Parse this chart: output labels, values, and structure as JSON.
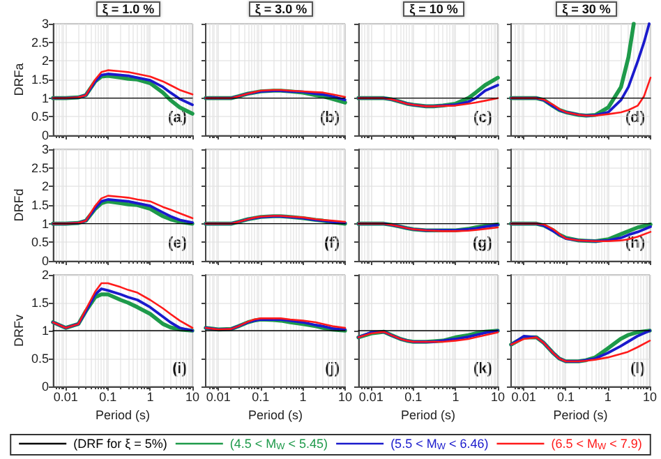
{
  "chart_data": [
    {
      "type": "line",
      "title": "ξ = 1.0 %",
      "ylabel": "DRFa",
      "annotations": [
        "(a)"
      ],
      "log": "x",
      "grid": true,
      "marker": "none",
      "line_style": "solid",
      "tick_labels": "y",
      "legend": "bottom",
      "xlim": [
        0.005,
        10
      ],
      "xticks": [
        0.01,
        0.1,
        1,
        10
      ],
      "ylim": [
        0,
        3
      ],
      "yticks": [
        0,
        0.5,
        1,
        1.5,
        2,
        2.5,
        3
      ],
      "x": [
        0.005,
        0.01,
        0.02,
        0.03,
        0.05,
        0.07,
        0.1,
        0.2,
        0.3,
        0.5,
        1,
        2,
        3,
        5,
        10
      ],
      "series": [
        {
          "name": "(DRF for ξ = 5%)",
          "color": "#000000",
          "x": [
            0.005,
            10
          ],
          "values": [
            1,
            1
          ]
        },
        {
          "name": "(4.5 < M$_{W}$ < 5.45)",
          "color": "#1e9a4a",
          "values": [
            1,
            1,
            1.02,
            1.08,
            1.45,
            1.58,
            1.6,
            1.55,
            1.52,
            1.5,
            1.4,
            1.15,
            0.95,
            0.75,
            0.58
          ]
        },
        {
          "name": "(5.5 < M$_{W}$ < 6.46)",
          "color": "#1a1acc",
          "values": [
            1,
            1,
            1.02,
            1.08,
            1.45,
            1.62,
            1.65,
            1.62,
            1.6,
            1.55,
            1.48,
            1.3,
            1.15,
            0.98,
            0.82
          ]
        },
        {
          "name": "(6.5 < M$_{W}$ < 7.9)",
          "color": "#ff1a1a",
          "values": [
            1,
            1,
            1.02,
            1.08,
            1.5,
            1.7,
            1.75,
            1.72,
            1.7,
            1.65,
            1.58,
            1.45,
            1.35,
            1.22,
            1.1
          ]
        }
      ]
    },
    {
      "type": "line",
      "title": "ξ = 3.0 %",
      "annotations": [
        "(b)"
      ],
      "log": "x",
      "grid": true,
      "marker": "none",
      "line_style": "solid",
      "tick_labels": false,
      "xlim": [
        0.005,
        10
      ],
      "xticks": [
        0.01,
        0.1,
        1,
        10
      ],
      "ylim": [
        0,
        3
      ],
      "yticks": [
        0,
        0.5,
        1,
        1.5,
        2,
        2.5,
        3
      ],
      "x": [
        0.005,
        0.01,
        0.02,
        0.03,
        0.05,
        0.07,
        0.1,
        0.2,
        0.3,
        0.5,
        1,
        2,
        3,
        5,
        10
      ],
      "series": [
        {
          "color": "#000000",
          "x": [
            0.005,
            10
          ],
          "values": [
            1,
            1
          ]
        },
        {
          "color": "#1e9a4a",
          "values": [
            1,
            1,
            1,
            1.05,
            1.12,
            1.15,
            1.18,
            1.2,
            1.2,
            1.18,
            1.15,
            1.08,
            1.05,
            0.98,
            0.88
          ]
        },
        {
          "color": "#1a1acc",
          "values": [
            1,
            1,
            1,
            1.05,
            1.12,
            1.15,
            1.18,
            1.2,
            1.2,
            1.18,
            1.17,
            1.12,
            1.1,
            1.05,
            0.95
          ]
        },
        {
          "color": "#ff1a1a",
          "values": [
            1,
            1,
            1,
            1.05,
            1.12,
            1.16,
            1.2,
            1.22,
            1.22,
            1.2,
            1.18,
            1.16,
            1.15,
            1.1,
            1.03
          ]
        }
      ]
    },
    {
      "type": "line",
      "title": "ξ = 10 %",
      "annotations": [
        "(c)"
      ],
      "log": "x",
      "grid": true,
      "marker": "none",
      "line_style": "solid",
      "tick_labels": false,
      "xlim": [
        0.005,
        10
      ],
      "xticks": [
        0.01,
        0.1,
        1,
        10
      ],
      "ylim": [
        0,
        3
      ],
      "yticks": [
        0,
        0.5,
        1,
        1.5,
        2,
        2.5,
        3
      ],
      "x": [
        0.005,
        0.01,
        0.02,
        0.03,
        0.05,
        0.07,
        0.1,
        0.2,
        0.3,
        0.5,
        1,
        2,
        3,
        5,
        10
      ],
      "series": [
        {
          "color": "#000000",
          "x": [
            0.005,
            10
          ],
          "values": [
            1,
            1
          ]
        },
        {
          "color": "#1e9a4a",
          "values": [
            1,
            1,
            1,
            0.97,
            0.9,
            0.85,
            0.82,
            0.78,
            0.78,
            0.8,
            0.85,
            1.0,
            1.15,
            1.35,
            1.55
          ]
        },
        {
          "color": "#1a1acc",
          "values": [
            1,
            1,
            1,
            0.97,
            0.9,
            0.85,
            0.82,
            0.78,
            0.78,
            0.8,
            0.82,
            0.9,
            1.0,
            1.2,
            1.35
          ]
        },
        {
          "color": "#ff1a1a",
          "values": [
            1,
            1,
            1,
            0.97,
            0.9,
            0.85,
            0.82,
            0.78,
            0.78,
            0.79,
            0.8,
            0.85,
            0.88,
            0.93,
            1.0
          ]
        }
      ]
    },
    {
      "type": "line",
      "title": "ξ = 30 %",
      "annotations": [
        "(d)"
      ],
      "log": "x",
      "grid": true,
      "marker": "none",
      "line_style": "solid",
      "tick_labels": false,
      "xlim": [
        0.005,
        10
      ],
      "xticks": [
        0.01,
        0.1,
        1,
        10
      ],
      "ylim": [
        0,
        3
      ],
      "yticks": [
        0,
        0.5,
        1,
        1.5,
        2,
        2.5,
        3
      ],
      "x": [
        0.005,
        0.01,
        0.02,
        0.03,
        0.05,
        0.07,
        0.1,
        0.2,
        0.3,
        0.5,
        1,
        2,
        3,
        5,
        7,
        10
      ],
      "series": [
        {
          "color": "#000000",
          "x": [
            0.005,
            10
          ],
          "values": [
            1,
            1
          ]
        },
        {
          "color": "#1e9a4a",
          "x": [
            0.005,
            0.01,
            0.02,
            0.03,
            0.05,
            0.07,
            0.1,
            0.2,
            0.3,
            0.5,
            1,
            2,
            3,
            4
          ],
          "values": [
            1,
            1,
            1,
            0.95,
            0.78,
            0.68,
            0.62,
            0.55,
            0.53,
            0.55,
            0.75,
            1.3,
            2.1,
            3
          ]
        },
        {
          "color": "#1a1acc",
          "x": [
            0.005,
            0.01,
            0.02,
            0.03,
            0.05,
            0.07,
            0.1,
            0.2,
            0.3,
            0.5,
            1,
            2,
            3,
            5,
            7,
            9.3
          ],
          "values": [
            1,
            1,
            1,
            0.95,
            0.78,
            0.68,
            0.62,
            0.55,
            0.53,
            0.54,
            0.62,
            0.95,
            1.3,
            2.0,
            2.5,
            3
          ]
        },
        {
          "color": "#ff1a1a",
          "values": [
            1,
            1,
            1,
            0.96,
            0.82,
            0.7,
            0.62,
            0.55,
            0.53,
            0.53,
            0.57,
            0.62,
            0.68,
            0.8,
            1.05,
            1.55
          ]
        }
      ]
    },
    {
      "type": "line",
      "ylabel": "DRFd",
      "annotations": [
        "(e)"
      ],
      "log": "x",
      "grid": true,
      "marker": "none",
      "line_style": "solid",
      "tick_labels": "y",
      "xlim": [
        0.005,
        10
      ],
      "xticks": [
        0.01,
        0.1,
        1,
        10
      ],
      "ylim": [
        0,
        3
      ],
      "yticks": [
        0,
        0.5,
        1,
        1.5,
        2,
        2.5,
        3
      ],
      "x": [
        0.005,
        0.01,
        0.02,
        0.03,
        0.05,
        0.07,
        0.1,
        0.2,
        0.3,
        0.5,
        1,
        2,
        3,
        5,
        10
      ],
      "series": [
        {
          "color": "#000000",
          "x": [
            0.005,
            10
          ],
          "values": [
            1,
            1
          ]
        },
        {
          "color": "#1e9a4a",
          "values": [
            1,
            1,
            1.02,
            1.08,
            1.4,
            1.55,
            1.6,
            1.55,
            1.52,
            1.5,
            1.4,
            1.2,
            1.12,
            1.05,
            1.0
          ]
        },
        {
          "color": "#1a1acc",
          "values": [
            1,
            1,
            1.02,
            1.08,
            1.42,
            1.6,
            1.65,
            1.62,
            1.6,
            1.55,
            1.48,
            1.3,
            1.2,
            1.1,
            1.03
          ]
        },
        {
          "color": "#ff1a1a",
          "values": [
            1,
            1,
            1.02,
            1.08,
            1.48,
            1.68,
            1.75,
            1.72,
            1.7,
            1.65,
            1.6,
            1.45,
            1.38,
            1.28,
            1.15
          ]
        }
      ]
    },
    {
      "type": "line",
      "annotations": [
        "(f)"
      ],
      "log": "x",
      "grid": true,
      "marker": "none",
      "line_style": "solid",
      "tick_labels": false,
      "xlim": [
        0.005,
        10
      ],
      "xticks": [
        0.01,
        0.1,
        1,
        10
      ],
      "ylim": [
        0,
        3
      ],
      "yticks": [
        0,
        0.5,
        1,
        1.5,
        2,
        2.5,
        3
      ],
      "x": [
        0.005,
        0.01,
        0.02,
        0.03,
        0.05,
        0.07,
        0.1,
        0.2,
        0.3,
        0.5,
        1,
        2,
        3,
        5,
        10
      ],
      "series": [
        {
          "color": "#000000",
          "x": [
            0.005,
            10
          ],
          "values": [
            1,
            1
          ]
        },
        {
          "color": "#1e9a4a",
          "values": [
            1,
            1,
            1,
            1.05,
            1.12,
            1.15,
            1.18,
            1.2,
            1.2,
            1.18,
            1.15,
            1.1,
            1.08,
            1.04,
            1.0
          ]
        },
        {
          "color": "#1a1acc",
          "values": [
            1,
            1,
            1,
            1.05,
            1.12,
            1.15,
            1.18,
            1.2,
            1.2,
            1.18,
            1.15,
            1.1,
            1.08,
            1.05,
            1.02
          ]
        },
        {
          "color": "#ff1a1a",
          "values": [
            1,
            1,
            1,
            1.05,
            1.12,
            1.16,
            1.19,
            1.21,
            1.21,
            1.19,
            1.17,
            1.12,
            1.1,
            1.08,
            1.05
          ]
        }
      ]
    },
    {
      "type": "line",
      "annotations": [
        "(g)"
      ],
      "log": "x",
      "grid": true,
      "marker": "none",
      "line_style": "solid",
      "tick_labels": false,
      "xlim": [
        0.005,
        10
      ],
      "xticks": [
        0.01,
        0.1,
        1,
        10
      ],
      "ylim": [
        0,
        3
      ],
      "yticks": [
        0,
        0.5,
        1,
        1.5,
        2,
        2.5,
        3
      ],
      "x": [
        0.005,
        0.01,
        0.02,
        0.03,
        0.05,
        0.07,
        0.1,
        0.2,
        0.3,
        0.5,
        1,
        2,
        3,
        5,
        10
      ],
      "series": [
        {
          "color": "#000000",
          "x": [
            0.005,
            10
          ],
          "values": [
            1,
            1
          ]
        },
        {
          "color": "#1e9a4a",
          "values": [
            1,
            1,
            1,
            0.97,
            0.92,
            0.88,
            0.85,
            0.82,
            0.82,
            0.82,
            0.82,
            0.86,
            0.9,
            0.94,
            0.98
          ]
        },
        {
          "color": "#1a1acc",
          "values": [
            1,
            1,
            1,
            0.97,
            0.92,
            0.88,
            0.85,
            0.82,
            0.82,
            0.82,
            0.82,
            0.85,
            0.87,
            0.92,
            0.97
          ]
        },
        {
          "color": "#ff1a1a",
          "values": [
            1,
            1,
            1,
            0.97,
            0.92,
            0.88,
            0.85,
            0.82,
            0.81,
            0.8,
            0.8,
            0.81,
            0.83,
            0.86,
            0.9
          ]
        }
      ]
    },
    {
      "type": "line",
      "annotations": [
        "(h)"
      ],
      "log": "x",
      "grid": true,
      "marker": "none",
      "line_style": "solid",
      "tick_labels": false,
      "xlim": [
        0.005,
        10
      ],
      "xticks": [
        0.01,
        0.1,
        1,
        10
      ],
      "ylim": [
        0,
        3
      ],
      "yticks": [
        0,
        0.5,
        1,
        1.5,
        2,
        2.5,
        3
      ],
      "x": [
        0.005,
        0.01,
        0.02,
        0.03,
        0.05,
        0.07,
        0.1,
        0.2,
        0.3,
        0.5,
        1,
        2,
        3,
        5,
        10
      ],
      "series": [
        {
          "color": "#000000",
          "x": [
            0.005,
            10
          ],
          "values": [
            1,
            1
          ]
        },
        {
          "color": "#1e9a4a",
          "values": [
            1,
            1,
            1,
            0.95,
            0.82,
            0.7,
            0.62,
            0.55,
            0.54,
            0.53,
            0.58,
            0.72,
            0.8,
            0.9,
            0.98
          ]
        },
        {
          "color": "#1a1acc",
          "values": [
            1,
            1,
            1,
            0.95,
            0.8,
            0.7,
            0.6,
            0.55,
            0.54,
            0.53,
            0.55,
            0.62,
            0.7,
            0.78,
            0.92
          ]
        },
        {
          "color": "#ff1a1a",
          "values": [
            1,
            1,
            1,
            0.98,
            0.85,
            0.72,
            0.6,
            0.55,
            0.54,
            0.53,
            0.53,
            0.55,
            0.58,
            0.65,
            0.78
          ]
        }
      ]
    },
    {
      "type": "line",
      "ylabel": "DRFv",
      "xlabel": "Period (s)",
      "annotations": [
        "(i)"
      ],
      "log": "x",
      "grid": true,
      "marker": "none",
      "line_style": "solid",
      "xlim": [
        0.005,
        10
      ],
      "xticks": [
        0.01,
        0.1,
        1,
        10
      ],
      "ylim": [
        0,
        2
      ],
      "yticks": [
        0,
        0.5,
        1,
        1.5,
        2
      ],
      "x": [
        0.005,
        0.01,
        0.02,
        0.03,
        0.05,
        0.07,
        0.1,
        0.2,
        0.3,
        0.5,
        1,
        2,
        3,
        5,
        10
      ],
      "series": [
        {
          "color": "#000000",
          "x": [
            0.005,
            10
          ],
          "values": [
            1,
            1
          ]
        },
        {
          "color": "#1e9a4a",
          "values": [
            1.15,
            1.05,
            1.12,
            1.35,
            1.6,
            1.65,
            1.65,
            1.55,
            1.5,
            1.42,
            1.3,
            1.12,
            1.06,
            1.02,
            1.0
          ]
        },
        {
          "color": "#1a1acc",
          "values": [
            1.15,
            1.05,
            1.12,
            1.35,
            1.65,
            1.75,
            1.72,
            1.65,
            1.6,
            1.55,
            1.42,
            1.25,
            1.15,
            1.05,
            1.0
          ]
        },
        {
          "color": "#ff1a1a",
          "values": [
            1.15,
            1.05,
            1.12,
            1.38,
            1.7,
            1.85,
            1.85,
            1.78,
            1.73,
            1.68,
            1.55,
            1.4,
            1.3,
            1.18,
            1.05
          ]
        }
      ]
    },
    {
      "type": "line",
      "xlabel": "Period (s)",
      "annotations": [
        "(j)"
      ],
      "log": "x",
      "grid": true,
      "marker": "none",
      "line_style": "solid",
      "tick_labels": "x",
      "xlim": [
        0.005,
        10
      ],
      "xticks": [
        0.01,
        0.1,
        1,
        10
      ],
      "ylim": [
        0,
        2
      ],
      "yticks": [
        0,
        0.5,
        1,
        1.5,
        2
      ],
      "x": [
        0.005,
        0.01,
        0.02,
        0.03,
        0.05,
        0.07,
        0.1,
        0.2,
        0.3,
        0.5,
        1,
        2,
        3,
        5,
        10
      ],
      "series": [
        {
          "color": "#000000",
          "x": [
            0.005,
            10
          ],
          "values": [
            1,
            1
          ]
        },
        {
          "color": "#1e9a4a",
          "values": [
            1.05,
            1.02,
            1.03,
            1.08,
            1.15,
            1.18,
            1.2,
            1.19,
            1.18,
            1.15,
            1.12,
            1.08,
            1.05,
            1.02,
            1.0
          ]
        },
        {
          "color": "#1a1acc",
          "values": [
            1.05,
            1.02,
            1.03,
            1.08,
            1.15,
            1.18,
            1.2,
            1.2,
            1.2,
            1.18,
            1.15,
            1.1,
            1.08,
            1.04,
            1.02
          ]
        },
        {
          "color": "#ff1a1a",
          "values": [
            1.05,
            1.02,
            1.03,
            1.08,
            1.16,
            1.2,
            1.22,
            1.22,
            1.22,
            1.2,
            1.18,
            1.15,
            1.12,
            1.08,
            1.05
          ]
        }
      ]
    },
    {
      "type": "line",
      "xlabel": "Period (s)",
      "annotations": [
        "(k)"
      ],
      "log": "x",
      "grid": true,
      "marker": "none",
      "line_style": "solid",
      "tick_labels": "x",
      "xlim": [
        0.005,
        10
      ],
      "xticks": [
        0.01,
        0.1,
        1,
        10
      ],
      "ylim": [
        0,
        2
      ],
      "yticks": [
        0,
        0.5,
        1,
        1.5,
        2
      ],
      "x": [
        0.005,
        0.01,
        0.02,
        0.03,
        0.05,
        0.07,
        0.1,
        0.2,
        0.3,
        0.5,
        1,
        2,
        3,
        5,
        10
      ],
      "series": [
        {
          "color": "#000000",
          "x": [
            0.005,
            10
          ],
          "values": [
            1,
            1
          ]
        },
        {
          "color": "#1e9a4a",
          "values": [
            0.88,
            0.95,
            0.98,
            0.92,
            0.85,
            0.82,
            0.8,
            0.8,
            0.81,
            0.82,
            0.88,
            0.92,
            0.95,
            0.98,
            1.0
          ]
        },
        {
          "color": "#1a1acc",
          "values": [
            0.88,
            0.97,
            0.98,
            0.92,
            0.85,
            0.82,
            0.8,
            0.8,
            0.8,
            0.82,
            0.85,
            0.89,
            0.92,
            0.96,
            1.0
          ]
        },
        {
          "color": "#ff1a1a",
          "values": [
            0.88,
            0.95,
            0.98,
            0.92,
            0.85,
            0.82,
            0.8,
            0.8,
            0.8,
            0.8,
            0.82,
            0.85,
            0.88,
            0.92,
            0.97
          ]
        }
      ]
    },
    {
      "type": "line",
      "xlabel": "Period (s)",
      "annotations": [
        "(l)"
      ],
      "log": "x",
      "grid": true,
      "marker": "none",
      "line_style": "solid",
      "tick_labels": "x",
      "xlim": [
        0.005,
        10
      ],
      "xticks": [
        0.01,
        0.1,
        1,
        10
      ],
      "ylim": [
        0,
        2
      ],
      "yticks": [
        0,
        0.5,
        1,
        1.5,
        2
      ],
      "x": [
        0.005,
        0.01,
        0.02,
        0.03,
        0.05,
        0.07,
        0.1,
        0.2,
        0.3,
        0.5,
        1,
        2,
        3,
        5,
        10
      ],
      "series": [
        {
          "color": "#000000",
          "x": [
            0.005,
            10
          ],
          "values": [
            1,
            1
          ]
        },
        {
          "color": "#1e9a4a",
          "values": [
            0.75,
            0.88,
            0.88,
            0.78,
            0.6,
            0.5,
            0.45,
            0.45,
            0.47,
            0.52,
            0.68,
            0.85,
            0.92,
            0.97,
            1.0
          ]
        },
        {
          "color": "#1a1acc",
          "values": [
            0.75,
            0.9,
            0.88,
            0.78,
            0.6,
            0.5,
            0.45,
            0.45,
            0.47,
            0.5,
            0.6,
            0.72,
            0.8,
            0.9,
            1.0
          ]
        },
        {
          "color": "#ff1a1a",
          "values": [
            0.75,
            0.85,
            0.88,
            0.78,
            0.6,
            0.5,
            0.45,
            0.45,
            0.46,
            0.48,
            0.52,
            0.58,
            0.62,
            0.7,
            0.82
          ]
        }
      ]
    }
  ]
}
